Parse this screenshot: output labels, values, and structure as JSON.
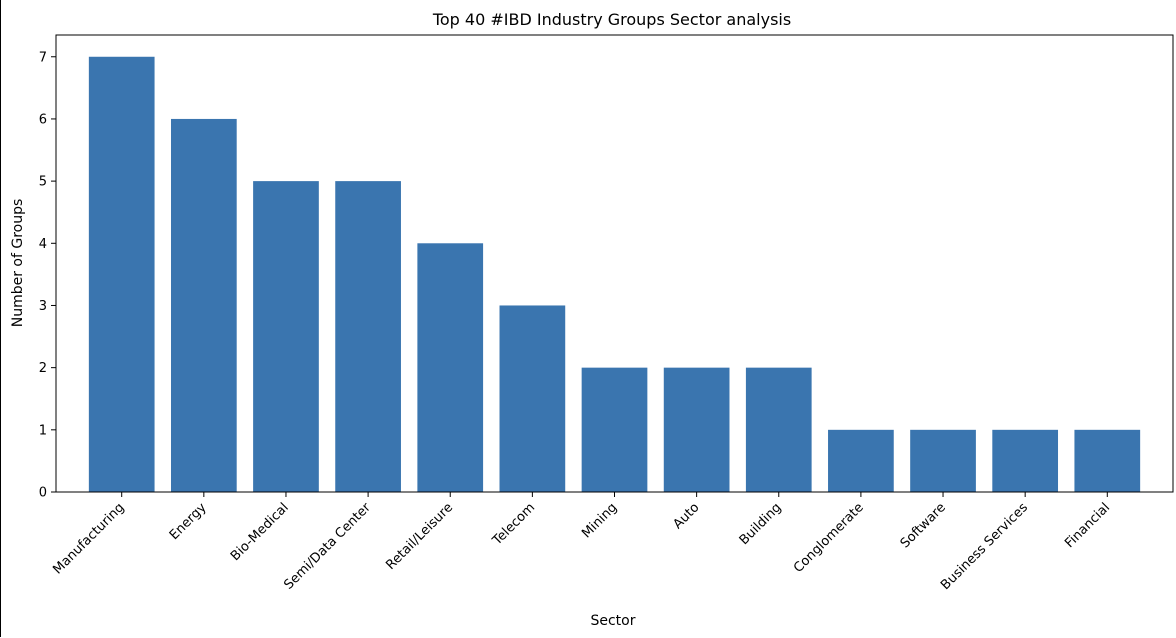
{
  "chart_data": {
    "type": "bar",
    "title": "Top 40 #IBD Industry Groups Sector analysis",
    "xlabel": "Sector",
    "ylabel": "Number of Groups",
    "categories": [
      "Manufacturing",
      "Energy",
      "Bio-Medical",
      "Semi/Data Center",
      "Retail/Leisure",
      "Telecom",
      "Mining",
      "Auto",
      "Building",
      "Conglomerate",
      "Software",
      "Business Services",
      "Financial"
    ],
    "values": [
      7,
      6,
      5,
      5,
      4,
      3,
      2,
      2,
      2,
      1,
      1,
      1,
      1
    ],
    "ylim": [
      0,
      7.35
    ],
    "yticks": [
      0,
      1,
      2,
      3,
      4,
      5,
      6,
      7
    ],
    "grid": false,
    "bar_color": "#3a75af"
  }
}
